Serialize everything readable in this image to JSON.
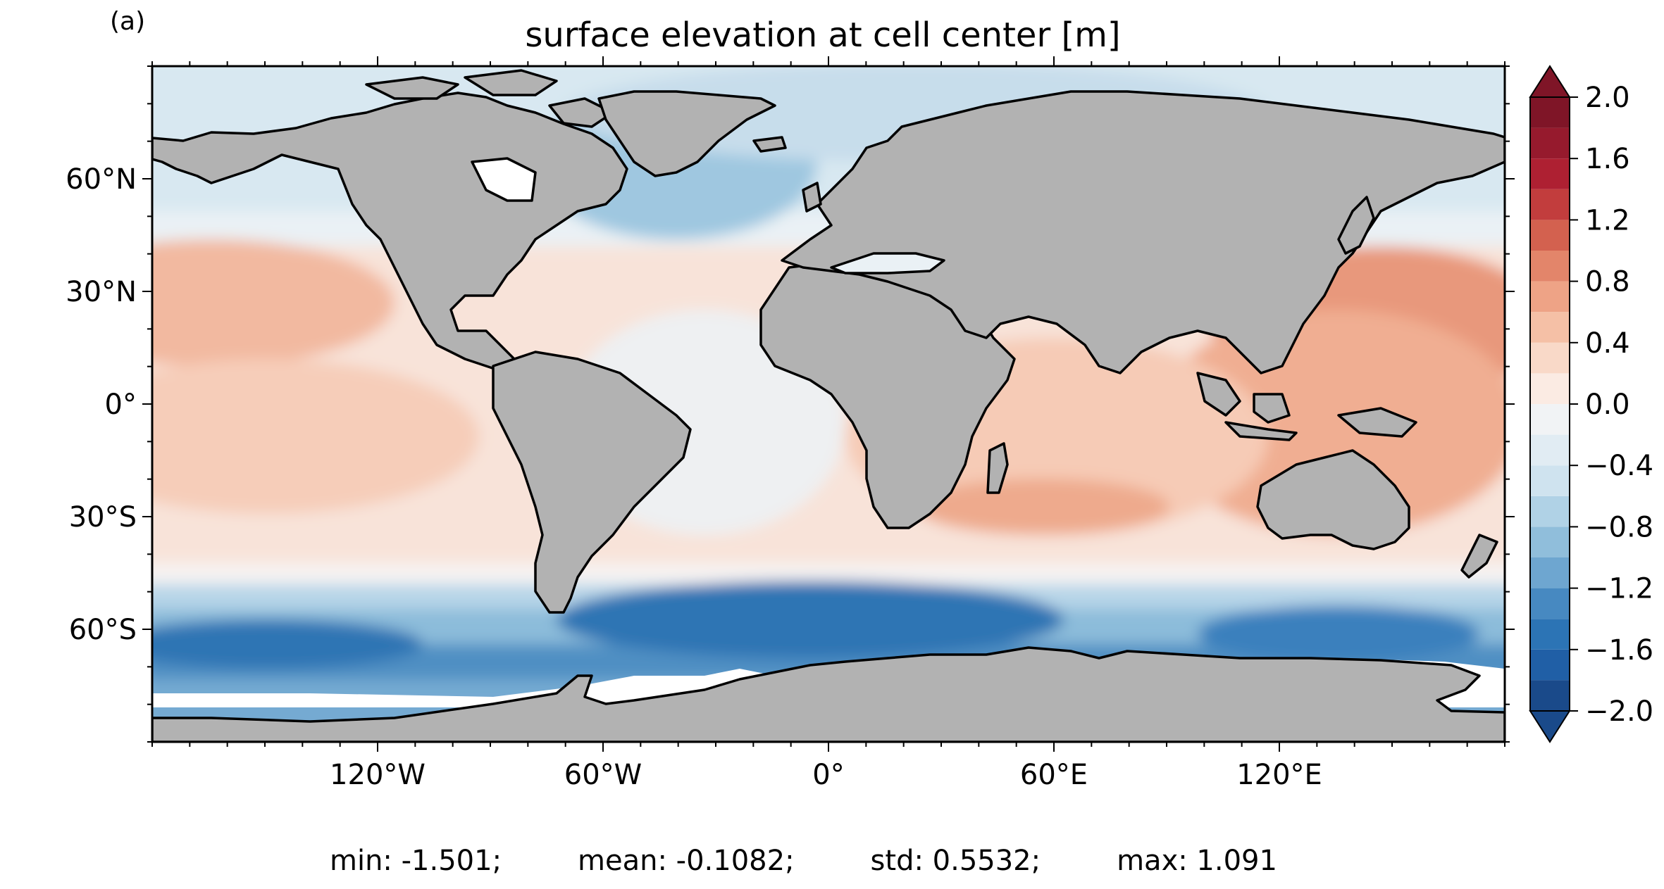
{
  "panel_label": "(a)",
  "chart_data": {
    "type": "heatmap",
    "title": "surface elevation at cell center [m]",
    "projection": "PlateCarree",
    "x_ticks": [
      "120°W",
      "60°W",
      "0°",
      "60°E",
      "120°E"
    ],
    "x_tick_values": [
      -120,
      -60,
      0,
      60,
      120
    ],
    "y_ticks": [
      "60°N",
      "30°N",
      "0°",
      "30°S",
      "60°S"
    ],
    "y_tick_values": [
      60,
      30,
      0,
      -30,
      -60
    ],
    "xlim": [
      -180,
      180
    ],
    "ylim": [
      -90,
      90
    ],
    "land_color": "#b2b2b2",
    "colormap": "RdBu_r",
    "colorbar": {
      "levels": [
        -2.0,
        -1.8,
        -1.6,
        -1.4,
        -1.2,
        -1.0,
        -0.8,
        -0.6,
        -0.4,
        -0.2,
        0.0,
        0.2,
        0.4,
        0.6,
        0.8,
        1.0,
        1.2,
        1.4,
        1.6,
        1.8,
        2.0
      ],
      "tick_labels": [
        "2.0",
        "1.6",
        "1.2",
        "0.8",
        "0.4",
        "0.0",
        "−0.4",
        "−0.8",
        "−1.2",
        "−1.6",
        "−2.0"
      ],
      "tick_values": [
        2.0,
        1.6,
        1.2,
        0.8,
        0.4,
        0.0,
        -0.4,
        -0.8,
        -1.2,
        -1.6,
        -2.0
      ],
      "extend": "both",
      "colors": [
        "#1a4a8a",
        "#205fa6",
        "#2c74b5",
        "#4789c1",
        "#6ea6d0",
        "#90bedb",
        "#b0d2e6",
        "#cfe3ef",
        "#e1ecf3",
        "#f1f3f5",
        "#fbebe3",
        "#f9d9c8",
        "#f5c0a6",
        "#eea386",
        "#e3856a",
        "#d3614f",
        "#c23d3d",
        "#ae2032",
        "#961a2d",
        "#7f1527"
      ]
    },
    "stats": {
      "min": "min: -1.501;",
      "mean": "mean: -0.1082;",
      "std": "std: 0.5532;",
      "max": "max: 1.091"
    }
  }
}
